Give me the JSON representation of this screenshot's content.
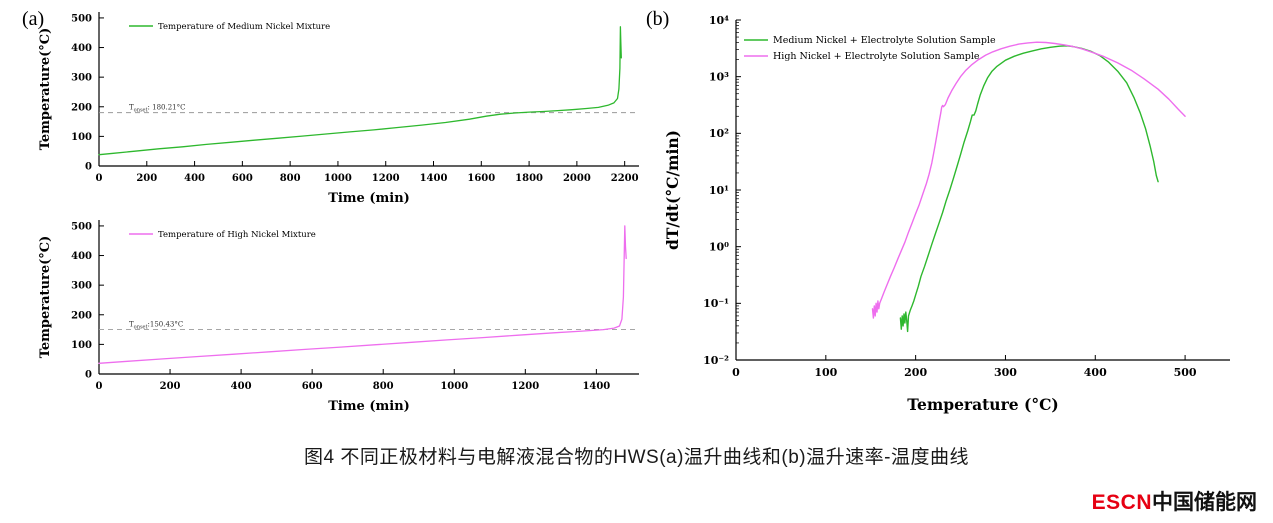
{
  "panels": {
    "a_label": "(a)",
    "b_label": "(b)"
  },
  "caption": "图4 不同正极材料与电解液混合物的HWS(a)温升曲线和(b)温升速率-温度曲线",
  "logo": {
    "escn": "ESCN",
    "cn": "中国储能网",
    "escn_color": "#e60012"
  },
  "colors": {
    "medium_nickel": "#2eb82e",
    "high_nickel": "#ee6eee",
    "onset_line": "#999999"
  },
  "chart_data": [
    {
      "id": "medium-nickel-temperature",
      "type": "line",
      "title": "",
      "xlabel": "Time (min)",
      "ylabel": "Temperature(°C)",
      "yscale": "linear",
      "xlim": [
        0,
        2260
      ],
      "ylim": [
        0,
        520
      ],
      "xticks": [
        0,
        200,
        400,
        600,
        800,
        1000,
        1200,
        1400,
        1600,
        1800,
        2000,
        2200
      ],
      "yticks": [
        0,
        100,
        200,
        300,
        400,
        500
      ],
      "legend_position": "top-left",
      "grid": false,
      "onset": {
        "y": 180.21,
        "prefix": "T",
        "sub": "onset",
        "rest": ": 180.21°C"
      },
      "series": [
        {
          "name": "Temperature of Medium Nickel Mixture",
          "color": "#2eb82e",
          "points": [
            [
              0,
              38
            ],
            [
              60,
              43
            ],
            [
              150,
              50
            ],
            [
              250,
              58
            ],
            [
              350,
              65
            ],
            [
              450,
              73
            ],
            [
              550,
              80
            ],
            [
              650,
              87
            ],
            [
              750,
              94
            ],
            [
              850,
              101
            ],
            [
              950,
              108
            ],
            [
              1050,
              115
            ],
            [
              1150,
              122
            ],
            [
              1250,
              130
            ],
            [
              1350,
              138
            ],
            [
              1450,
              147
            ],
            [
              1550,
              158
            ],
            [
              1620,
              168
            ],
            [
              1680,
              175
            ],
            [
              1740,
              179
            ],
            [
              1800,
              182
            ],
            [
              1860,
              184
            ],
            [
              1920,
              187
            ],
            [
              1980,
              190
            ],
            [
              2040,
              194
            ],
            [
              2090,
              198
            ],
            [
              2130,
              205
            ],
            [
              2155,
              213
            ],
            [
              2170,
              228
            ],
            [
              2176,
              260
            ],
            [
              2180,
              330
            ],
            [
              2182,
              470
            ],
            [
              2184,
              420
            ],
            [
              2186,
              365
            ]
          ]
        }
      ]
    },
    {
      "id": "high-nickel-temperature",
      "type": "line",
      "title": "",
      "xlabel": "Time (min)",
      "ylabel": "Temperature(°C)",
      "yscale": "linear",
      "xlim": [
        0,
        1520
      ],
      "ylim": [
        0,
        520
      ],
      "xticks": [
        0,
        200,
        400,
        600,
        800,
        1000,
        1200,
        1400
      ],
      "yticks": [
        0,
        100,
        200,
        300,
        400,
        500
      ],
      "legend_position": "top-left",
      "grid": false,
      "onset": {
        "y": 150.43,
        "prefix": "T",
        "sub": "onset",
        "rest": ":150.43°C"
      },
      "series": [
        {
          "name": "Temperature of High Nickel Mixture",
          "color": "#ee6eee",
          "points": [
            [
              0,
              36
            ],
            [
              80,
              43
            ],
            [
              180,
              51
            ],
            [
              280,
              59
            ],
            [
              380,
              67
            ],
            [
              480,
              75
            ],
            [
              580,
              83
            ],
            [
              680,
              91
            ],
            [
              780,
              99
            ],
            [
              880,
              107
            ],
            [
              980,
              115
            ],
            [
              1080,
              123
            ],
            [
              1180,
              131
            ],
            [
              1280,
              139
            ],
            [
              1360,
              145
            ],
            [
              1420,
              150
            ],
            [
              1450,
              155
            ],
            [
              1465,
              162
            ],
            [
              1472,
              185
            ],
            [
              1476,
              260
            ],
            [
              1478,
              380
            ],
            [
              1480,
              500
            ],
            [
              1482,
              430
            ],
            [
              1484,
              390
            ]
          ]
        }
      ]
    },
    {
      "id": "heating-rate-vs-temperature",
      "type": "line",
      "title": "",
      "xlabel": "Temperature (°C)",
      "ylabel": "dT/dt(°C/min)",
      "yscale": "log",
      "xlim": [
        0,
        550
      ],
      "ylim": [
        0.01,
        10000
      ],
      "xticks": [
        0,
        100,
        200,
        300,
        400,
        500
      ],
      "yticks": [
        {
          "v": 0.01,
          "label": "10⁻²"
        },
        {
          "v": 0.1,
          "label": "10⁻¹"
        },
        {
          "v": 1,
          "label": "10⁰"
        },
        {
          "v": 10,
          "label": "10¹"
        },
        {
          "v": 100,
          "label": "10²"
        },
        {
          "v": 1000,
          "label": "10³"
        },
        {
          "v": 10000,
          "label": "10⁴"
        }
      ],
      "legend_position": "top-left",
      "grid": false,
      "series": [
        {
          "name": "Medium Nickel + Electrolyte Solution Sample",
          "color": "#2eb82e",
          "points": [
            [
              183,
              0.055
            ],
            [
              184,
              0.035
            ],
            [
              185,
              0.06
            ],
            [
              186,
              0.04
            ],
            [
              187,
              0.065
            ],
            [
              188,
              0.045
            ],
            [
              189,
              0.07
            ],
            [
              190,
              0.05
            ],
            [
              191,
              0.032
            ],
            [
              192,
              0.06
            ],
            [
              194,
              0.075
            ],
            [
              196,
              0.09
            ],
            [
              198,
              0.11
            ],
            [
              200,
              0.14
            ],
            [
              203,
              0.2
            ],
            [
              206,
              0.3
            ],
            [
              210,
              0.45
            ],
            [
              214,
              0.7
            ],
            [
              218,
              1.1
            ],
            [
              222,
              1.7
            ],
            [
              226,
              2.6
            ],
            [
              230,
              4
            ],
            [
              234,
              6.5
            ],
            [
              238,
              10
            ],
            [
              242,
              16
            ],
            [
              246,
              26
            ],
            [
              250,
              42
            ],
            [
              254,
              70
            ],
            [
              258,
              110
            ],
            [
              261,
              160
            ],
            [
              263,
              210
            ],
            [
              265,
              210
            ],
            [
              267,
              250
            ],
            [
              269,
              330
            ],
            [
              272,
              480
            ],
            [
              276,
              700
            ],
            [
              280,
              950
            ],
            [
              285,
              1250
            ],
            [
              290,
              1500
            ],
            [
              300,
              1950
            ],
            [
              310,
              2300
            ],
            [
              320,
              2600
            ],
            [
              330,
              2850
            ],
            [
              340,
              3100
            ],
            [
              350,
              3300
            ],
            [
              360,
              3450
            ],
            [
              368,
              3500
            ],
            [
              375,
              3400
            ],
            [
              385,
              3150
            ],
            [
              395,
              2800
            ],
            [
              405,
              2350
            ],
            [
              415,
              1800
            ],
            [
              425,
              1250
            ],
            [
              435,
              780
            ],
            [
              443,
              430
            ],
            [
              450,
              230
            ],
            [
              456,
              120
            ],
            [
              461,
              60
            ],
            [
              465,
              32
            ],
            [
              468,
              18
            ],
            [
              470,
              14
            ]
          ]
        },
        {
          "name": "High Nickel + Electrolyte Solution Sample",
          "color": "#ee6eee",
          "points": [
            [
              152,
              0.08
            ],
            [
              153,
              0.055
            ],
            [
              154,
              0.09
            ],
            [
              155,
              0.06
            ],
            [
              156,
              0.1
            ],
            [
              157,
              0.07
            ],
            [
              158,
              0.11
            ],
            [
              159,
              0.08
            ],
            [
              160,
              0.1
            ],
            [
              162,
              0.12
            ],
            [
              165,
              0.16
            ],
            [
              168,
              0.21
            ],
            [
              172,
              0.3
            ],
            [
              176,
              0.42
            ],
            [
              180,
              0.6
            ],
            [
              184,
              0.85
            ],
            [
              188,
              1.2
            ],
            [
              192,
              1.8
            ],
            [
              196,
              2.6
            ],
            [
              200,
              3.8
            ],
            [
              204,
              5.5
            ],
            [
              208,
              8.5
            ],
            [
              212,
              13
            ],
            [
              215,
              19
            ],
            [
              218,
              30
            ],
            [
              220,
              44
            ],
            [
              222,
              66
            ],
            [
              224,
              100
            ],
            [
              226,
              155
            ],
            [
              228,
              230
            ],
            [
              229,
              290
            ],
            [
              230,
              310
            ],
            [
              231,
              295
            ],
            [
              233,
              320
            ],
            [
              236,
              420
            ],
            [
              240,
              560
            ],
            [
              245,
              760
            ],
            [
              250,
              1000
            ],
            [
              256,
              1300
            ],
            [
              262,
              1600
            ],
            [
              270,
              2000
            ],
            [
              278,
              2400
            ],
            [
              286,
              2750
            ],
            [
              295,
              3100
            ],
            [
              305,
              3450
            ],
            [
              315,
              3750
            ],
            [
              325,
              3950
            ],
            [
              335,
              4050
            ],
            [
              345,
              4000
            ],
            [
              355,
              3850
            ],
            [
              365,
              3650
            ],
            [
              375,
              3400
            ],
            [
              385,
              3100
            ],
            [
              395,
              2750
            ],
            [
              410,
              2250
            ],
            [
              425,
              1750
            ],
            [
              440,
              1300
            ],
            [
              455,
              900
            ],
            [
              470,
              600
            ],
            [
              482,
              400
            ],
            [
              492,
              270
            ],
            [
              500,
              200
            ]
          ]
        }
      ]
    }
  ]
}
